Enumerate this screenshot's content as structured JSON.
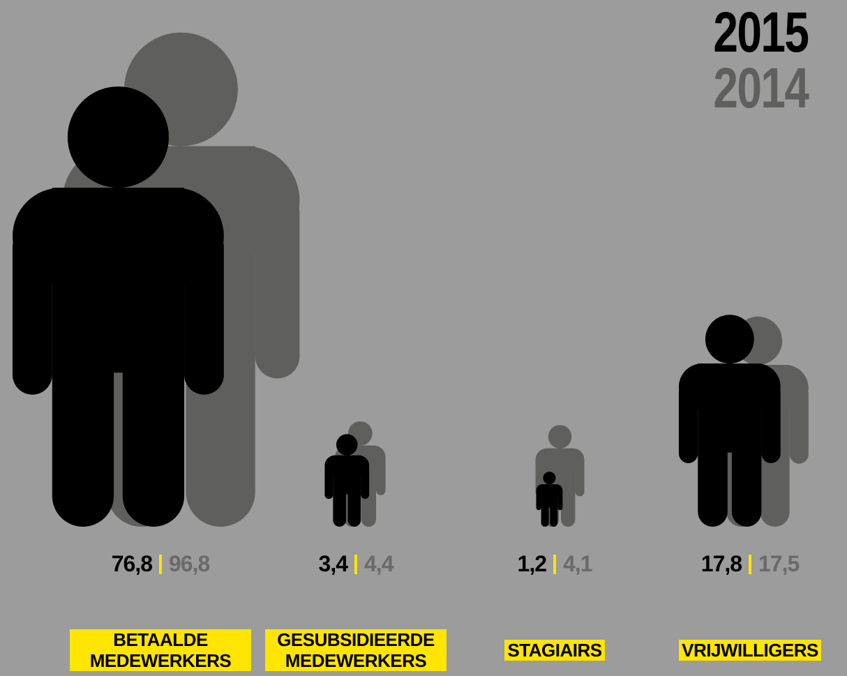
{
  "chart_data": {
    "type": "pictogram",
    "categories": [
      "BETAALDE MEDEWERKERS",
      "GESUBSIDIEERDE MEDEWERKERS",
      "STAGIAIRS",
      "VRIJWILLIGERS"
    ],
    "series": [
      {
        "name": "2015",
        "color": "#000000",
        "values": [
          76.8,
          3.4,
          1.2,
          17.8
        ],
        "value_labels": [
          "76,8",
          "3,4",
          "1,2",
          "17,8"
        ]
      },
      {
        "name": "2014",
        "color": "#5f5f5e",
        "values": [
          96.8,
          4.4,
          4.1,
          17.5
        ],
        "value_labels": [
          "96,8",
          "4,4",
          "4,1",
          "17,5"
        ]
      }
    ],
    "label_color": "#ffe500",
    "separator_color": "#ffe500",
    "value_label_colors": [
      "#000000",
      "#6a6a6a"
    ]
  }
}
